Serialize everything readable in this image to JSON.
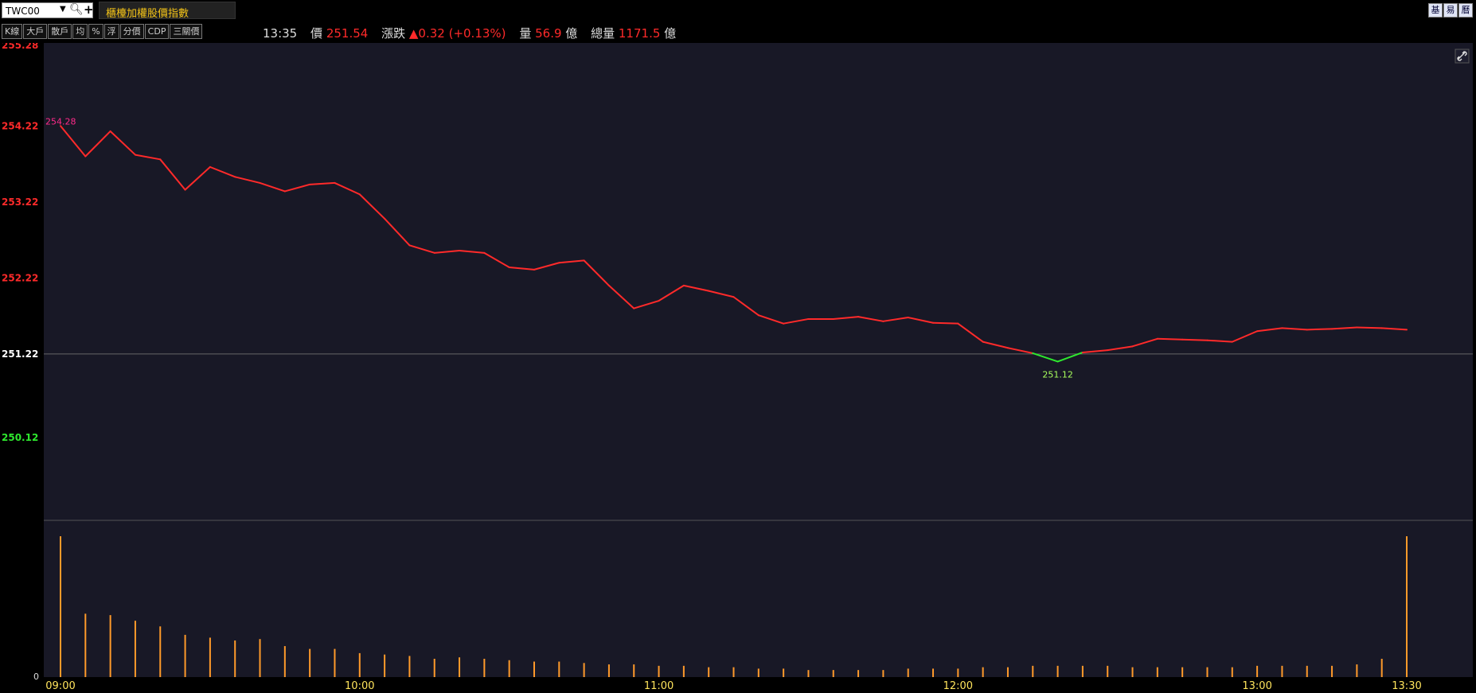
{
  "header": {
    "symbol": "TWC00",
    "title": "櫃檯加權股價指數",
    "right_buttons": [
      "基",
      "易",
      "曆"
    ],
    "dropdown_icon": "chevron-down-icon",
    "search_icon": "search-icon",
    "add_icon": "plus-icon"
  },
  "toolbar": {
    "buttons": [
      "K線",
      "大戶",
      "散戶",
      "均",
      "%",
      "浮",
      "分價",
      "CDP",
      "三關價"
    ]
  },
  "quote": {
    "time": "13:35",
    "price_label": "價",
    "price": "251.54",
    "change_label": "漲跌",
    "change": "▲0.32 (+0.13%)",
    "volume_label": "量",
    "volume": "56.9",
    "volume_unit": "億",
    "total_volume_label": "總量",
    "total_volume": "1171.5",
    "total_volume_unit": "億"
  },
  "colors": {
    "background": "#181826",
    "up": "#ff2a2a",
    "down": "#2ee82e",
    "volume_bar": "#ff9a2a",
    "high_label": "#ff2a8a",
    "low_label": "#a8ff5c"
  },
  "chart_data": {
    "type": "line",
    "title": "",
    "reference_price": 251.22,
    "ylim": [
      250.12,
      255.28
    ],
    "y_ticks": [
      "255.28",
      "254.22",
      "253.22",
      "252.22",
      "251.22",
      "250.12"
    ],
    "x_ticks": [
      "09:00",
      "10:00",
      "11:00",
      "12:00",
      "13:00",
      "13:30"
    ],
    "high_label": "254.28",
    "low_label": "251.12",
    "volume_axis_label": "0",
    "series": [
      {
        "x": [
          "09:00",
          "09:05",
          "09:10",
          "09:15",
          "09:20",
          "09:25",
          "09:30",
          "09:35",
          "09:40",
          "09:45",
          "09:50",
          "09:55",
          "10:00",
          "10:05",
          "10:10",
          "10:15",
          "10:20",
          "10:25",
          "10:30",
          "10:35",
          "10:40",
          "10:45",
          "10:50",
          "10:55",
          "11:00",
          "11:05",
          "11:10",
          "11:15",
          "11:20",
          "11:25",
          "11:30",
          "11:35",
          "11:40",
          "11:45",
          "11:50",
          "11:55",
          "12:00",
          "12:05",
          "12:10",
          "12:15",
          "12:20",
          "12:25",
          "12:30",
          "12:35",
          "12:40",
          "12:45",
          "12:50",
          "12:55",
          "13:00",
          "13:05",
          "13:10",
          "13:15",
          "13:20",
          "13:25",
          "13:30"
        ],
        "values": [
          254.22,
          253.82,
          254.15,
          253.84,
          253.78,
          253.38,
          253.68,
          253.55,
          253.47,
          253.36,
          253.45,
          253.47,
          253.32,
          253.0,
          252.65,
          252.55,
          252.58,
          252.55,
          252.36,
          252.33,
          252.42,
          252.45,
          252.12,
          251.82,
          251.92,
          252.12,
          252.05,
          251.97,
          251.73,
          251.62,
          251.68,
          251.68,
          251.71,
          251.65,
          251.7,
          251.63,
          251.62,
          251.38,
          251.3,
          251.23,
          251.12,
          251.24,
          251.27,
          251.32,
          251.42,
          251.41,
          251.4,
          251.38,
          251.52,
          251.56,
          251.54,
          251.55,
          251.57,
          251.56,
          251.54
        ]
      }
    ],
    "volume": [
      100,
      45,
      44,
      40,
      36,
      30,
      28,
      26,
      27,
      22,
      20,
      20,
      17,
      16,
      15,
      13,
      14,
      13,
      12,
      11,
      11,
      10,
      9,
      9,
      8,
      8,
      7,
      7,
      6,
      6,
      5,
      5,
      5,
      5,
      6,
      6,
      6,
      7,
      7,
      8,
      8,
      8,
      8,
      7,
      7,
      7,
      7,
      7,
      8,
      8,
      8,
      8,
      9,
      13,
      100
    ]
  }
}
